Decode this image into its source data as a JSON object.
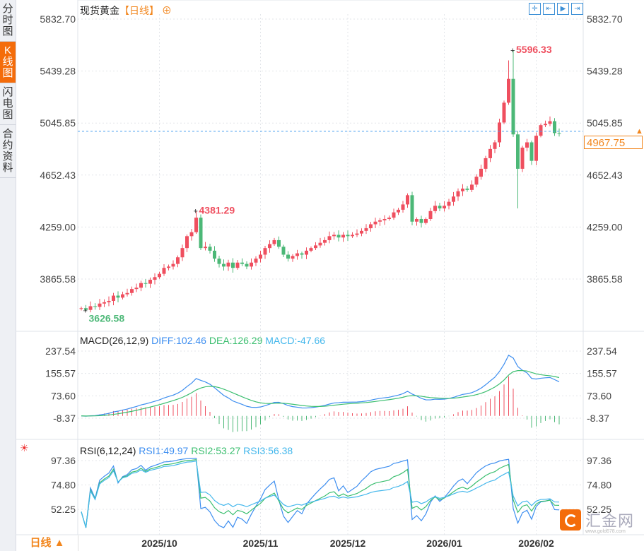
{
  "sidebar": {
    "tabs": [
      {
        "label": "分时图",
        "active": false
      },
      {
        "label": "K线图",
        "active": true
      },
      {
        "label": "闪电图",
        "active": false
      },
      {
        "label": "合约资料",
        "active": false
      }
    ]
  },
  "header": {
    "symbol": "现货黄金",
    "period_label": "【日线】",
    "add_icon": "circle-plus-icon"
  },
  "toolbar": {
    "icons": [
      "crosshair-icon",
      "zoom-fit-icon",
      "play-icon",
      "scroll-end-icon"
    ]
  },
  "colors": {
    "up": "#ef4f5f",
    "down": "#4cb877",
    "diff": "#3d8ef0",
    "dea": "#3cbf70",
    "macd3": "#43b7ec",
    "accent": "#f2861d",
    "price_line": "#4aa0f0"
  },
  "price_axis": {
    "ticks": [
      "5832.70",
      "5439.28",
      "5045.85",
      "4652.43",
      "4259.00",
      "3865.58"
    ],
    "current": "4967.75"
  },
  "date_axis": {
    "labels": [
      "2025/10",
      "2025/11",
      "2025/12",
      "2026/01",
      "2026/02"
    ],
    "start_index": [
      17,
      39,
      58,
      79,
      99
    ]
  },
  "markers": {
    "high": {
      "label": "5596.33",
      "value": 5596.33,
      "index": 94
    },
    "local_high": {
      "label": "4381.29",
      "value": 4381.29,
      "index": 25
    },
    "low": {
      "label": "3626.58",
      "value": 3626.58,
      "index": 1
    }
  },
  "chart_data": {
    "type": "candlestick",
    "closes": [
      3645,
      3632,
      3660,
      3655,
      3680,
      3690,
      3700,
      3740,
      3725,
      3750,
      3760,
      3790,
      3800,
      3835,
      3830,
      3860,
      3880,
      3905,
      3950,
      3960,
      3980,
      4030,
      4100,
      4190,
      4220,
      4330,
      4100,
      4110,
      4080,
      4020,
      3980,
      3960,
      3990,
      3950,
      3990,
      3980,
      3960,
      3990,
      4020,
      4050,
      4100,
      4130,
      4160,
      4110,
      4050,
      4020,
      4040,
      4060,
      4050,
      4080,
      4100,
      4120,
      4140,
      4160,
      4190,
      4200,
      4180,
      4200,
      4190,
      4200,
      4210,
      4230,
      4250,
      4280,
      4300,
      4310,
      4320,
      4330,
      4370,
      4390,
      4430,
      4500,
      4300,
      4320,
      4290,
      4320,
      4380,
      4420,
      4400,
      4420,
      4450,
      4490,
      4530,
      4550,
      4540,
      4580,
      4640,
      4700,
      4780,
      4850,
      4900,
      5050,
      5200,
      5380,
      4960,
      4700,
      4860,
      4900,
      4760,
      4950,
      5030,
      5040,
      5060,
      4970,
      4967.75
    ],
    "first_open": 3640
  },
  "macd": {
    "label": "MACD(26,12,9)",
    "diff": "DIFF:102.46",
    "dea": "DEA:126.29",
    "macd": "MACD:-47.66",
    "ticks": [
      "237.54",
      "155.57",
      "73.60",
      "-8.37"
    ]
  },
  "rsi": {
    "label": "RSI(6,12,24)",
    "rsi1": "RSI1:49.97",
    "rsi2": "RSI2:53.27",
    "rsi3": "RSI3:56.38",
    "ticks": [
      "97.36",
      "74.80",
      "52.25"
    ],
    "icon": "sun-settings-icon"
  },
  "footer": {
    "period": "日线 ▲"
  },
  "logo": {
    "name": "汇金网",
    "url": "www.gold678.com"
  }
}
